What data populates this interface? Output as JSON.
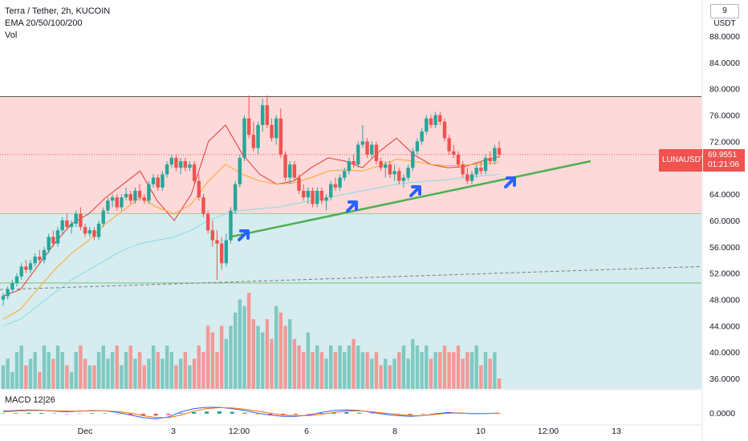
{
  "header": {
    "title": "Terra / Tether, 2h, KUCOIN",
    "indicator": "EMA 20/50/100/200",
    "volume": "Vol",
    "macd": "MACD 12|26"
  },
  "currency_button": "9 USDT",
  "price_axis": {
    "labels": [
      "88.0000",
      "84.0000",
      "80.0000",
      "76.0000",
      "72.0000",
      "64.0000",
      "60.0000",
      "56.0000",
      "52.0000",
      "48.0000",
      "44.0000",
      "40.0000",
      "36.0000"
    ],
    "macd_label": "0.0000"
  },
  "time_axis": {
    "labels": [
      "Dec",
      "3",
      "12:00",
      "6",
      "8",
      "10",
      "12:00",
      "13"
    ]
  },
  "current": {
    "symbol": "LUNAUSDT",
    "price": "69.9551",
    "countdown": "01:21:06"
  },
  "colors": {
    "up": "#26a69a",
    "down": "#ef5350",
    "resistance_zone": "#fdd9d9",
    "support_zone": "#e6f4e7",
    "trendline": "#4caf50",
    "arrow": "#2962ff",
    "ema_fast": "#e53935",
    "ema_mid": "#ffa726",
    "ema_slow": "#80deea"
  },
  "chart_data": {
    "type": "candlestick",
    "symbol": "LUNAUSDT",
    "interval": "2h",
    "exchange": "KUCOIN",
    "ylim": [
      34.5,
      90.5
    ],
    "candles_ohlc": [
      [
        48,
        49,
        47,
        48.5
      ],
      [
        48.5,
        50,
        48,
        49.5
      ],
      [
        49.5,
        51,
        49,
        50.5
      ],
      [
        50.5,
        52,
        50,
        51.5
      ],
      [
        51.5,
        53.5,
        51,
        53
      ],
      [
        53,
        54,
        52,
        52.5
      ],
      [
        52.5,
        54,
        52,
        53.5
      ],
      [
        53.5,
        55,
        53,
        54.5
      ],
      [
        54.5,
        55.5,
        53.5,
        54
      ],
      [
        54,
        56,
        53.5,
        55.5
      ],
      [
        55.5,
        58,
        55,
        57.5
      ],
      [
        57.5,
        58.5,
        56,
        56.5
      ],
      [
        56.5,
        59,
        56,
        58.5
      ],
      [
        58.5,
        60.5,
        58,
        60
      ],
      [
        60,
        61,
        58.5,
        59
      ],
      [
        59,
        60,
        58,
        59.5
      ],
      [
        59.5,
        61.5,
        59,
        61
      ],
      [
        61,
        62,
        58.5,
        59
      ],
      [
        59,
        59.5,
        57.5,
        58
      ],
      [
        58,
        59,
        57.5,
        58.5
      ],
      [
        58.5,
        59,
        57,
        57.5
      ],
      [
        57.5,
        60,
        57,
        59.5
      ],
      [
        59.5,
        62,
        59,
        61.5
      ],
      [
        61.5,
        63.5,
        61,
        63
      ],
      [
        63,
        64,
        62,
        63.5
      ],
      [
        63.5,
        64,
        61.5,
        62
      ],
      [
        62,
        64,
        61.5,
        63.5
      ],
      [
        63.5,
        65,
        63,
        64
      ],
      [
        64,
        64.5,
        62.5,
        63
      ],
      [
        63,
        65,
        62.5,
        64.5
      ],
      [
        64.5,
        65.5,
        63,
        63.5
      ],
      [
        63.5,
        64,
        62.5,
        63
      ],
      [
        63,
        66,
        62.5,
        65.5
      ],
      [
        65.5,
        67,
        65,
        66.5
      ],
      [
        66.5,
        67,
        64.5,
        65
      ],
      [
        65,
        67.5,
        64.5,
        67
      ],
      [
        67,
        69,
        66.5,
        68.5
      ],
      [
        68.5,
        70,
        68,
        69.5
      ],
      [
        69.5,
        70,
        67.5,
        68
      ],
      [
        68,
        69.5,
        67,
        69
      ],
      [
        69,
        69.5,
        67.5,
        68
      ],
      [
        68,
        69,
        67.5,
        68.5
      ],
      [
        68.5,
        69,
        65.5,
        66
      ],
      [
        66,
        67,
        63,
        63.5
      ],
      [
        63.5,
        64,
        60.5,
        61
      ],
      [
        61,
        61.5,
        58,
        58.5
      ],
      [
        58.5,
        60,
        56,
        57
      ],
      [
        57,
        58.5,
        51,
        56.5
      ],
      [
        56.5,
        57.5,
        52.5,
        53.5
      ],
      [
        53.5,
        58,
        53,
        57
      ],
      [
        57,
        62,
        56.5,
        61.5
      ],
      [
        61.5,
        66,
        61,
        65.5
      ],
      [
        65.5,
        70,
        65,
        69.5
      ],
      [
        69.5,
        76,
        69,
        75.5
      ],
      [
        75.5,
        79,
        72.5,
        73
      ],
      [
        73,
        75,
        70.5,
        71
      ],
      [
        71,
        75,
        70,
        74.5
      ],
      [
        74.5,
        78.5,
        73.5,
        77.5
      ],
      [
        77.5,
        79,
        74,
        74.5
      ],
      [
        74.5,
        75.5,
        72,
        72.5
      ],
      [
        72.5,
        76,
        71.5,
        75.5
      ],
      [
        75.5,
        77,
        69.5,
        70
      ],
      [
        70,
        70.5,
        66,
        66.5
      ],
      [
        66.5,
        69,
        65.5,
        68.5
      ],
      [
        68.5,
        69,
        66,
        66.5
      ],
      [
        66.5,
        67,
        64,
        64.5
      ],
      [
        64.5,
        65.5,
        63,
        63.5
      ],
      [
        63.5,
        65,
        62.5,
        64.5
      ],
      [
        64.5,
        65,
        62,
        62.5
      ],
      [
        62.5,
        65,
        62,
        64.5
      ],
      [
        64.5,
        65,
        62.5,
        63
      ],
      [
        63,
        64,
        61.5,
        63.5
      ],
      [
        63.5,
        66,
        63,
        65.5
      ],
      [
        65.5,
        66.5,
        64.5,
        65
      ],
      [
        65,
        67,
        64.5,
        66.5
      ],
      [
        66.5,
        68,
        66,
        67.5
      ],
      [
        67.5,
        69.5,
        67,
        69
      ],
      [
        69,
        70,
        68,
        68.5
      ],
      [
        68.5,
        72,
        68,
        71.5
      ],
      [
        71.5,
        74.5,
        71,
        72
      ],
      [
        72,
        72.5,
        69.5,
        70
      ],
      [
        70,
        72,
        69.5,
        71.5
      ],
      [
        71.5,
        72,
        68.5,
        69
      ],
      [
        69,
        69.5,
        67.5,
        68
      ],
      [
        68,
        69,
        66.5,
        68.5
      ],
      [
        68.5,
        69,
        66.5,
        67
      ],
      [
        67,
        68.5,
        66,
        67.5
      ],
      [
        67.5,
        68,
        65.5,
        66
      ],
      [
        66,
        67,
        65,
        66.5
      ],
      [
        66.5,
        68.5,
        66,
        68
      ],
      [
        68,
        71,
        67.5,
        70.5
      ],
      [
        70.5,
        72.5,
        70,
        72
      ],
      [
        72,
        74,
        71.5,
        73.5
      ],
      [
        73.5,
        76,
        73,
        75.5
      ],
      [
        75.5,
        76,
        74,
        74.5
      ],
      [
        74.5,
        76.5,
        74,
        76
      ],
      [
        76,
        76.5,
        74.5,
        75
      ],
      [
        75,
        75.5,
        72,
        72.5
      ],
      [
        72.5,
        73,
        70,
        70.5
      ],
      [
        70.5,
        71.5,
        69.5,
        70
      ],
      [
        70,
        70.5,
        68,
        68.5
      ],
      [
        68.5,
        69,
        66.5,
        67
      ],
      [
        67,
        68,
        65.5,
        66
      ],
      [
        66,
        67.5,
        65.5,
        67
      ],
      [
        67,
        68.5,
        66.5,
        68
      ],
      [
        68,
        69,
        67,
        67.5
      ],
      [
        67.5,
        70,
        67,
        69.5
      ],
      [
        69.5,
        70.5,
        68.5,
        69
      ],
      [
        69,
        71.5,
        68.5,
        71
      ],
      [
        71,
        72,
        69.5,
        70
      ]
    ],
    "volume": [
      38,
      39,
      37,
      40,
      41,
      38,
      39,
      40,
      37,
      41,
      40,
      39,
      41,
      40,
      38,
      37,
      40,
      41,
      39,
      38,
      38,
      40,
      41,
      39,
      40,
      41,
      38,
      40,
      41,
      39,
      40,
      38,
      39,
      41,
      40,
      39,
      41,
      40,
      38,
      39,
      40,
      38,
      39,
      41,
      40,
      44,
      43,
      40,
      44,
      42,
      44,
      46,
      48,
      47,
      49,
      45,
      44,
      43,
      45,
      42,
      47,
      46,
      44,
      45,
      42,
      41,
      40,
      43,
      40,
      41,
      40,
      39,
      41,
      40,
      41,
      40,
      41,
      42,
      41,
      40,
      40,
      39,
      40,
      38,
      39,
      38,
      39,
      40,
      41,
      39,
      42,
      41,
      40,
      41,
      39,
      40,
      40,
      41,
      40,
      40,
      41,
      39,
      40,
      40,
      41,
      38,
      40,
      39,
      40,
      36
    ],
    "ema": [
      {
        "period": 20,
        "values": [
          48.5,
          49.5,
          53,
          56.5,
          59.5,
          61,
          63.5,
          65.5,
          67.5,
          63,
          60,
          64,
          72,
          74.5,
          70,
          67,
          65.5,
          66,
          68,
          69.5,
          69,
          68,
          70.5,
          72.5,
          70,
          68.5,
          68,
          68.2,
          69,
          69.7
        ]
      },
      {
        "period": 50,
        "values": [
          45,
          46.5,
          49.5,
          52.5,
          55,
          57,
          59.5,
          61.5,
          63.5,
          62,
          61,
          62.5,
          66,
          68.5,
          67,
          66,
          65.5,
          65.7,
          66.5,
          67.5,
          67.7,
          67.5,
          68.3,
          69.3,
          69,
          68.5,
          68.3,
          68.4,
          68.6,
          68.8
        ]
      },
      {
        "period": 100,
        "values": [
          44,
          45,
          47,
          49,
          51,
          52.5,
          54,
          55.5,
          56.5,
          57,
          57.5,
          58.5,
          60,
          61,
          61.5,
          61.8,
          62,
          62.5,
          63,
          63.5,
          64,
          64.5,
          65,
          65.5,
          65.8,
          66,
          66.2,
          66.5,
          66.8,
          67
        ]
      }
    ],
    "zones": [
      {
        "label": "resistance",
        "from": 61,
        "to": 78.8
      },
      {
        "label": "support",
        "from": 41.5,
        "to": 61
      }
    ],
    "hlines": [
      50.5
    ],
    "trendline": {
      "from": 57.5,
      "to": 69
    },
    "dashed_line": {
      "from": 49.5,
      "to": 53
    },
    "macd": {
      "hist": [
        0.1,
        0.2,
        0.3,
        0.25,
        0.1,
        -0.05,
        0.1,
        0.2,
        0.15,
        -0.1,
        -0.3,
        -0.5,
        -0.6,
        -0.4,
        0.2,
        0.5,
        0.7,
        0.8,
        0.6,
        0.3,
        -0.1,
        -0.3,
        -0.4,
        -0.3,
        -0.1,
        0.2,
        0.4,
        0.5,
        0.3,
        0.1,
        -0.1,
        -0.3,
        -0.4,
        -0.2,
        0.1,
        0.3,
        0.1,
        -0.1,
        0.05,
        0.1
      ],
      "macd": [
        0.4,
        0.5,
        0.6,
        0.55,
        0.4,
        0.3,
        0.4,
        0.5,
        0.45,
        0.2,
        -0.2,
        -0.6,
        -0.8,
        -0.5,
        0.3,
        0.8,
        1.0,
        1.0,
        0.8,
        0.5,
        0.1,
        -0.2,
        -0.4,
        -0.4,
        -0.2,
        0.2,
        0.5,
        0.6,
        0.5,
        0.2,
        -0.1,
        -0.3,
        -0.4,
        -0.3,
        0,
        0.2,
        0.1,
        0,
        0.05,
        0.1
      ],
      "signal": [
        0.3,
        0.4,
        0.5,
        0.5,
        0.45,
        0.4,
        0.4,
        0.45,
        0.45,
        0.35,
        0.1,
        -0.3,
        -0.6,
        -0.6,
        -0.2,
        0.4,
        0.8,
        0.95,
        0.9,
        0.7,
        0.4,
        0.1,
        -0.2,
        -0.3,
        -0.3,
        -0.1,
        0.2,
        0.4,
        0.45,
        0.3,
        0.1,
        -0.1,
        -0.3,
        -0.3,
        -0.1,
        0.1,
        0.1,
        0.05,
        0.05,
        0.08
      ]
    }
  }
}
